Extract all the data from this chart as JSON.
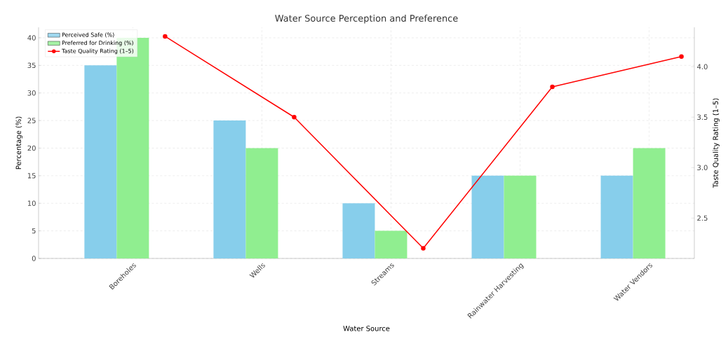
{
  "chart_data": {
    "type": "bar",
    "title": "Water Source Perception and Preference",
    "xlabel": "Water Source",
    "ylabel": "Percentage (%)",
    "y2label": "Taste Quality Rating (1–5)",
    "categories": [
      "Boreholes",
      "Wells",
      "Streams",
      "Rainwater Harvesting",
      "Water Vendors"
    ],
    "series": [
      {
        "name": "Perceived Safe (%)",
        "color": "#87ceeb",
        "values": [
          35,
          25,
          10,
          15,
          15
        ]
      },
      {
        "name": "Preferred for Drinking (%)",
        "color": "#90ee90",
        "values": [
          40,
          20,
          5,
          15,
          20
        ]
      },
      {
        "name": "Taste Quality Rating (1–5)",
        "type": "line",
        "axis": "y2",
        "color": "#ff0000",
        "marker": "circle",
        "values": [
          4.3,
          3.5,
          2.2,
          3.8,
          4.1
        ]
      }
    ],
    "ylim": [
      0,
      41.9
    ],
    "yticks": [
      0,
      5,
      10,
      15,
      20,
      25,
      30,
      35,
      40
    ],
    "y2lim": [
      2.1,
      4.39
    ],
    "y2ticks": [
      2.5,
      {
        "value": 3,
        "label": "3.0"
      },
      3.5,
      {
        "value": 4,
        "label": "4.0"
      }
    ],
    "grid": true,
    "legend": "top left"
  }
}
